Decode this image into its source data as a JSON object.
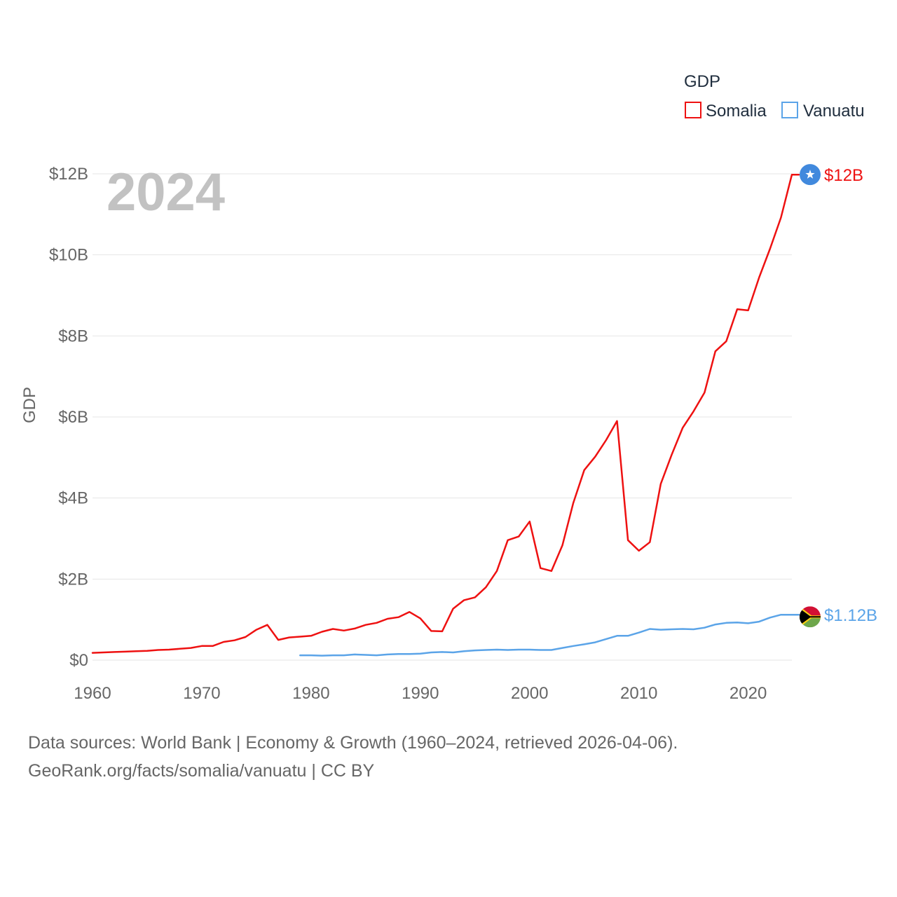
{
  "chart_data": {
    "type": "line",
    "title": "GDP",
    "year_label": "2024",
    "ylabel": "GDP",
    "xlabel": "",
    "xlim": [
      1960,
      2024
    ],
    "ylim": [
      0,
      12
    ],
    "y_unit": "billion USD",
    "y_ticks": [
      0,
      2,
      4,
      6,
      8,
      10,
      12
    ],
    "y_tick_labels": [
      "$0",
      "$2B",
      "$4B",
      "$6B",
      "$8B",
      "$10B",
      "$12B"
    ],
    "x_ticks": [
      1960,
      1970,
      1980,
      1990,
      2000,
      2010,
      2020
    ],
    "x_tick_labels": [
      "1960",
      "1970",
      "1980",
      "1990",
      "2000",
      "2010",
      "2020"
    ],
    "legend": {
      "title": "GDP",
      "placement": "top-right"
    },
    "series": [
      {
        "name": "Somalia",
        "color": "#ee1111",
        "end_label": "$12B",
        "end_marker": "somalia-flag",
        "x": [
          1960,
          1961,
          1962,
          1963,
          1964,
          1965,
          1966,
          1967,
          1968,
          1969,
          1970,
          1971,
          1972,
          1973,
          1974,
          1975,
          1976,
          1977,
          1978,
          1979,
          1980,
          1981,
          1982,
          1983,
          1984,
          1985,
          1986,
          1987,
          1988,
          1989,
          1990,
          1991,
          1992,
          1993,
          1994,
          1995,
          1996,
          1997,
          1998,
          1999,
          2000,
          2001,
          2002,
          2003,
          2004,
          2005,
          2006,
          2007,
          2008,
          2009,
          2010,
          2011,
          2012,
          2013,
          2014,
          2015,
          2016,
          2017,
          2018,
          2019,
          2020,
          2021,
          2022,
          2023,
          2024
        ],
        "values": [
          0.18,
          0.19,
          0.2,
          0.21,
          0.22,
          0.23,
          0.25,
          0.26,
          0.28,
          0.3,
          0.35,
          0.35,
          0.45,
          0.49,
          0.57,
          0.75,
          0.87,
          0.5,
          0.56,
          0.58,
          0.6,
          0.7,
          0.77,
          0.73,
          0.78,
          0.87,
          0.92,
          1.02,
          1.06,
          1.19,
          1.03,
          0.72,
          0.71,
          1.27,
          1.48,
          1.55,
          1.8,
          2.2,
          2.96,
          3.05,
          3.42,
          2.27,
          2.2,
          2.83,
          3.88,
          4.69,
          5.02,
          5.43,
          5.9,
          2.96,
          2.7,
          2.91,
          4.35,
          5.07,
          5.73,
          6.14,
          6.6,
          7.62,
          7.87,
          8.66,
          8.63,
          9.44,
          10.15,
          10.92,
          11.98
        ]
      },
      {
        "name": "Vanuatu",
        "color": "#5ba4e8",
        "end_label": "$1.12B",
        "end_marker": "vanuatu-flag",
        "x": [
          1979,
          1980,
          1981,
          1982,
          1983,
          1984,
          1985,
          1986,
          1987,
          1988,
          1989,
          1990,
          1991,
          1992,
          1993,
          1994,
          1995,
          1996,
          1997,
          1998,
          1999,
          2000,
          2001,
          2002,
          2003,
          2004,
          2005,
          2006,
          2007,
          2008,
          2009,
          2010,
          2011,
          2012,
          2013,
          2014,
          2015,
          2016,
          2017,
          2018,
          2019,
          2020,
          2021,
          2022,
          2023,
          2024
        ],
        "values": [
          0.12,
          0.12,
          0.11,
          0.12,
          0.12,
          0.14,
          0.13,
          0.12,
          0.14,
          0.15,
          0.15,
          0.16,
          0.19,
          0.2,
          0.19,
          0.22,
          0.24,
          0.25,
          0.26,
          0.25,
          0.26,
          0.26,
          0.25,
          0.25,
          0.3,
          0.35,
          0.39,
          0.44,
          0.52,
          0.6,
          0.6,
          0.68,
          0.77,
          0.75,
          0.76,
          0.77,
          0.76,
          0.8,
          0.88,
          0.92,
          0.93,
          0.91,
          0.95,
          1.05,
          1.12,
          1.12
        ]
      }
    ]
  },
  "footer": {
    "line1": "Data sources: World Bank | Economy & Growth (1960–2024, retrieved 2026-04-06).",
    "line2": "GeoRank.org/facts/somalia/vanuatu | CC BY"
  },
  "colors": {
    "grid": "#e6e6e6",
    "tick_text": "#666666",
    "watermark": "#c2c2c2"
  }
}
